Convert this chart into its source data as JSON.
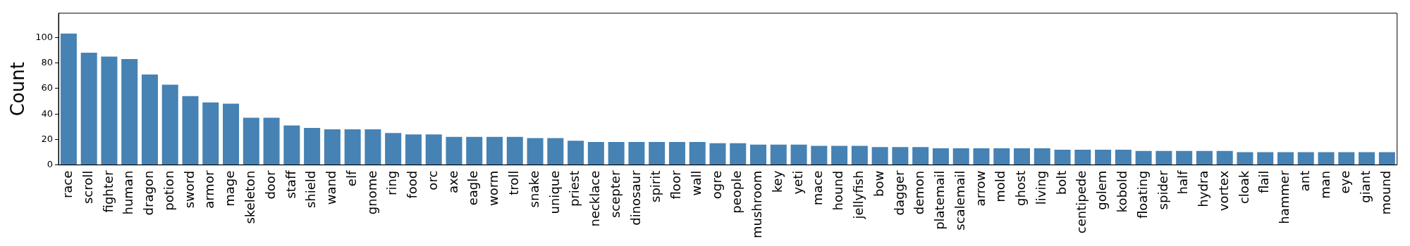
{
  "chart_data": {
    "type": "bar",
    "ylabel": "Count",
    "categories": [
      "race",
      "scroll",
      "fighter",
      "human",
      "dragon",
      "potion",
      "sword",
      "armor",
      "mage",
      "skeleton",
      "door",
      "staff",
      "shield",
      "wand",
      "elf",
      "gnome",
      "ring",
      "food",
      "orc",
      "axe",
      "eagle",
      "worm",
      "troll",
      "snake",
      "unique",
      "priest",
      "necklace",
      "scepter",
      "dinosaur",
      "spirit",
      "floor",
      "wall",
      "ogre",
      "people",
      "mushroom",
      "key",
      "yeti",
      "mace",
      "hound",
      "jellyfish",
      "bow",
      "dagger",
      "demon",
      "platemail",
      "scalemail",
      "arrow",
      "mold",
      "ghost",
      "living",
      "bolt",
      "centipede",
      "golem",
      "kobold",
      "floating",
      "spider",
      "half",
      "hydra",
      "vortex",
      "cloak",
      "flail",
      "hammer",
      "ant",
      "man",
      "eye",
      "giant",
      "mound"
    ],
    "values": [
      103,
      88,
      85,
      83,
      71,
      63,
      54,
      49,
      48,
      37,
      37,
      31,
      29,
      28,
      28,
      28,
      25,
      24,
      24,
      22,
      22,
      22,
      22,
      21,
      21,
      19,
      18,
      18,
      18,
      18,
      18,
      18,
      17,
      17,
      16,
      16,
      16,
      15,
      15,
      15,
      14,
      14,
      14,
      13,
      13,
      13,
      13,
      13,
      13,
      12,
      12,
      12,
      12,
      11,
      11,
      11,
      11,
      11,
      10,
      10,
      10,
      10,
      10,
      10,
      10,
      10
    ],
    "color": "#4682b4",
    "ylim": [
      0,
      119
    ],
    "yticks": [
      0,
      20,
      40,
      60,
      80,
      100
    ],
    "grid": false,
    "legend": false
  }
}
